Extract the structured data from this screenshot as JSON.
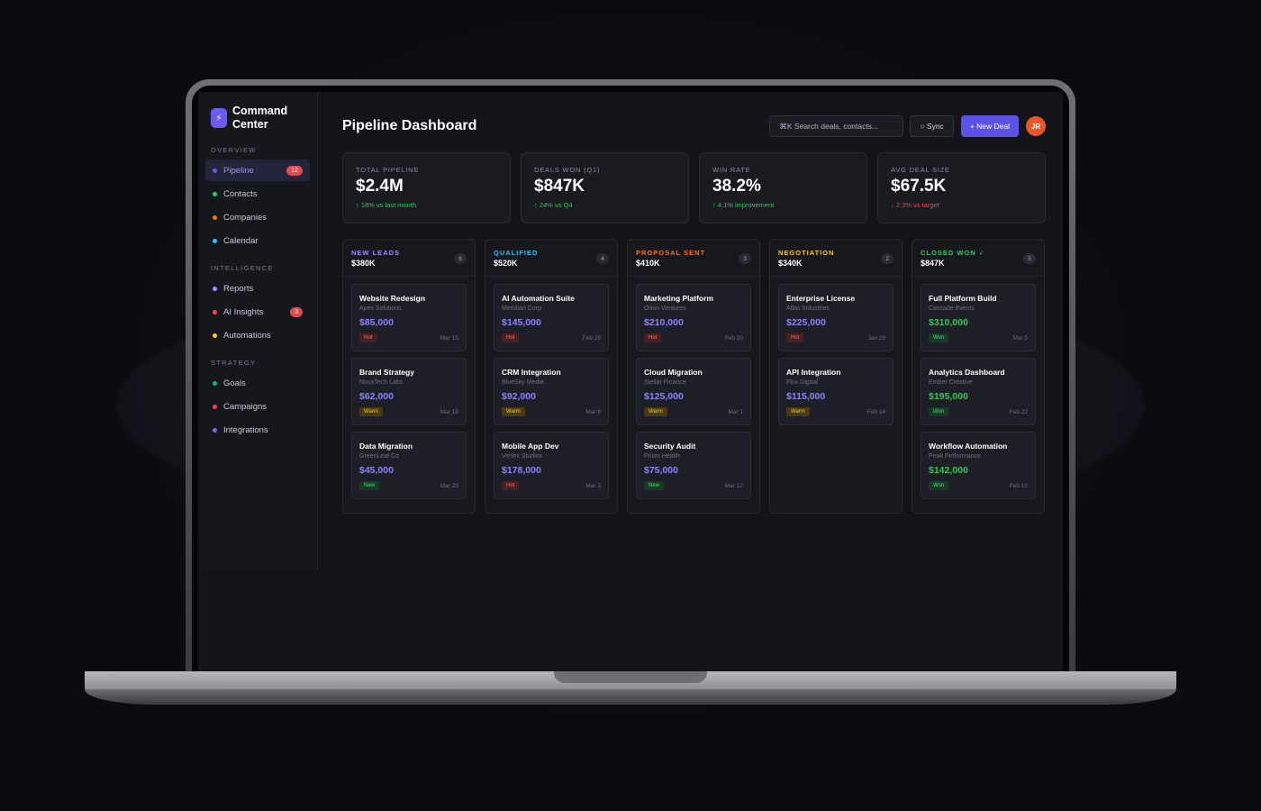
{
  "brand": {
    "name": "Command Center",
    "icon": "bolt-icon"
  },
  "sidebar": {
    "sections": [
      {
        "label": "OVERVIEW",
        "items": [
          {
            "label": "Pipeline",
            "color": "#6b5cf0",
            "badge": "12",
            "active": true
          },
          {
            "label": "Contacts",
            "color": "#34c759",
            "badge": ""
          },
          {
            "label": "Companies",
            "color": "#f97316",
            "badge": ""
          },
          {
            "label": "Calendar",
            "color": "#38bdf8",
            "badge": ""
          }
        ]
      },
      {
        "label": "INTELLIGENCE",
        "items": [
          {
            "label": "Reports",
            "color": "#a78bfa",
            "badge": ""
          },
          {
            "label": "AI Insights",
            "color": "#f43f5e",
            "badge": "3"
          },
          {
            "label": "Automations",
            "color": "#facc15",
            "badge": ""
          }
        ]
      },
      {
        "label": "STRATEGY",
        "items": [
          {
            "label": "Goals",
            "color": "#10b981",
            "badge": ""
          },
          {
            "label": "Campaigns",
            "color": "#f43f5e",
            "badge": ""
          },
          {
            "label": "Integrations",
            "color": "#8b5cf6",
            "badge": ""
          }
        ]
      }
    ]
  },
  "header": {
    "title": "Pipeline Dashboard",
    "search_placeholder": "⌘K Search deals, contacts...",
    "sync_label": "○ Sync",
    "new_deal_label": "+ New Deal",
    "avatar_initials": "JR"
  },
  "stats": [
    {
      "label": "TOTAL PIPELINE",
      "value": "$2.4M",
      "delta": "↑ 18% vs last month",
      "trend": "up"
    },
    {
      "label": "DEALS WON (Q1)",
      "value": "$847K",
      "delta": "↑ 24% vs Q4",
      "trend": "up"
    },
    {
      "label": "WIN RATE",
      "value": "38.2%",
      "delta": "↑ 4.1% improvement",
      "trend": "up"
    },
    {
      "label": "AVG DEAL SIZE",
      "value": "$67.5K",
      "delta": "↓ 2.3% vs target",
      "trend": "down"
    }
  ],
  "columns": [
    {
      "title": "NEW LEADS",
      "color": "#a78bfa",
      "total": "$380K",
      "count": "6",
      "cards": [
        {
          "name": "Website Redesign",
          "company": "Apex Solutions",
          "value": "$85,000",
          "tag": "Hot",
          "date": "Mar 15"
        },
        {
          "name": "Brand Strategy",
          "company": "NovaTech Labs",
          "value": "$62,000",
          "tag": "Warm",
          "date": "Mar 18"
        },
        {
          "name": "Data Migration",
          "company": "GreenLeaf Co",
          "value": "$45,000",
          "tag": "New",
          "date": "Mar 22"
        }
      ]
    },
    {
      "title": "QUALIFIED",
      "color": "#38bdf8",
      "total": "$520K",
      "count": "4",
      "cards": [
        {
          "name": "AI Automation Suite",
          "company": "Meridian Corp",
          "value": "$145,000",
          "tag": "Hot",
          "date": "Feb 28"
        },
        {
          "name": "CRM Integration",
          "company": "BlueSky Media",
          "value": "$92,000",
          "tag": "Warm",
          "date": "Mar 8"
        },
        {
          "name": "Mobile App Dev",
          "company": "Vertex Studios",
          "value": "$178,000",
          "tag": "Hot",
          "date": "Mar 3"
        }
      ]
    },
    {
      "title": "PROPOSAL SENT",
      "color": "#f97316",
      "total": "$410K",
      "count": "3",
      "cards": [
        {
          "name": "Marketing Platform",
          "company": "Orion Ventures",
          "value": "$210,000",
          "tag": "Hot",
          "date": "Feb 20"
        },
        {
          "name": "Cloud Migration",
          "company": "Stellar Finance",
          "value": "$125,000",
          "tag": "Warm",
          "date": "Mar 1"
        },
        {
          "name": "Security Audit",
          "company": "Prism Health",
          "value": "$75,000",
          "tag": "New",
          "date": "Mar 12"
        }
      ]
    },
    {
      "title": "NEGOTIATION",
      "color": "#facc15",
      "total": "$340K",
      "count": "2",
      "cards": [
        {
          "name": "Enterprise License",
          "company": "Atlas Industries",
          "value": "$225,000",
          "tag": "Hot",
          "date": "Jan 28"
        },
        {
          "name": "API Integration",
          "company": "Flux Digital",
          "value": "$115,000",
          "tag": "Warm",
          "date": "Feb 14"
        }
      ]
    },
    {
      "title": "CLOSED WON ✓",
      "color": "#34c759",
      "total": "$847K",
      "count": "5",
      "won": true,
      "cards": [
        {
          "name": "Full Platform Build",
          "company": "Cascade Events",
          "value": "$310,000",
          "tag": "Won",
          "date": "Mar 5"
        },
        {
          "name": "Analytics Dashboard",
          "company": "Ember Creative",
          "value": "$195,000",
          "tag": "Won",
          "date": "Feb 22"
        },
        {
          "name": "Workflow Automation",
          "company": "Peak Performance",
          "value": "$142,000",
          "tag": "Won",
          "date": "Feb 10"
        }
      ]
    }
  ]
}
